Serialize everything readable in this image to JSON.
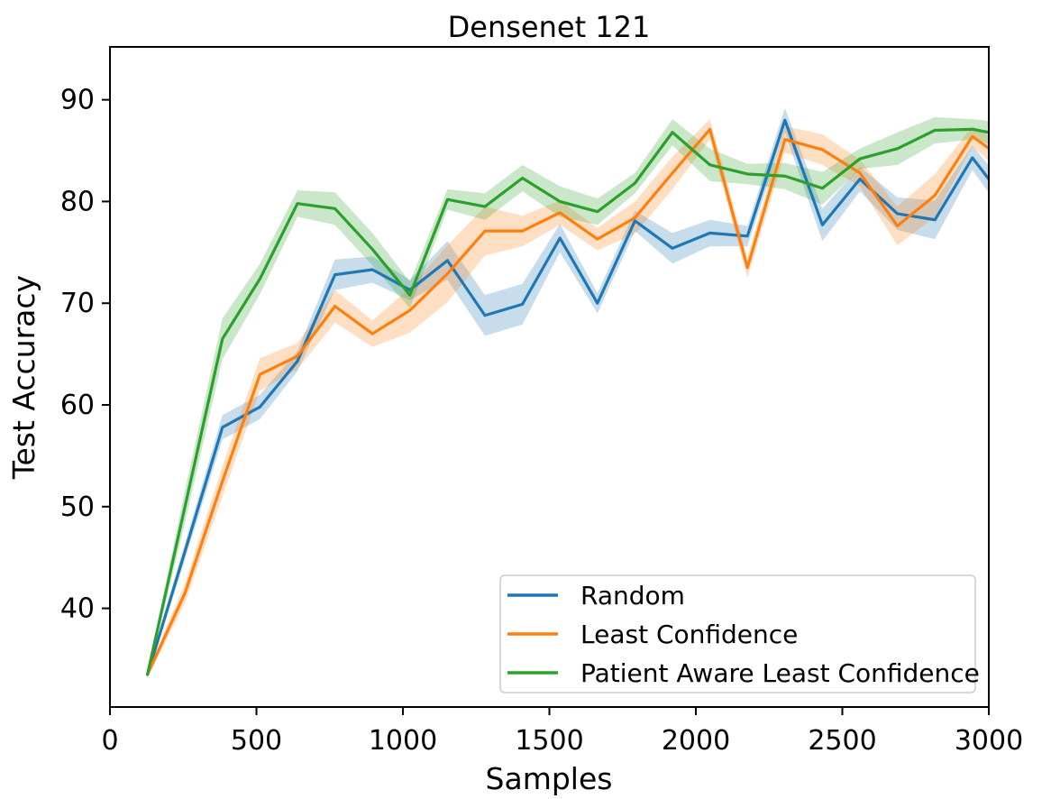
{
  "chart_data": {
    "type": "line",
    "title": "Densenet 121",
    "xlabel": "Samples",
    "ylabel": "Test Accuracy",
    "xlim": [
      0,
      3000
    ],
    "ylim": [
      30.3,
      95.2
    ],
    "x_ticks": [
      0,
      500,
      1000,
      1500,
      2000,
      2500,
      3000
    ],
    "y_ticks": [
      40,
      50,
      60,
      70,
      80,
      90
    ],
    "grid": false,
    "legend_location": "lower right",
    "x": [
      128,
      256,
      384,
      512,
      640,
      768,
      896,
      1024,
      1152,
      1280,
      1408,
      1536,
      1664,
      1792,
      1920,
      2048,
      2176,
      2304,
      2432,
      2560,
      2688,
      2816,
      2944,
      3072
    ],
    "series": [
      {
        "name": "Random",
        "color": "#1f77b4",
        "values": [
          33.5,
          45.6,
          57.8,
          59.8,
          64.3,
          72.8,
          73.3,
          71.3,
          74.2,
          68.8,
          69.9,
          76.4,
          70.0,
          78.1,
          75.4,
          76.9,
          76.6,
          88.0,
          77.7,
          82.2,
          78.8,
          78.2,
          84.3,
          79.5
        ],
        "band": [
          0.3,
          0.8,
          1.2,
          1.2,
          1.0,
          1.5,
          1.3,
          1.0,
          1.9,
          2.0,
          2.0,
          1.4,
          1.0,
          1.0,
          1.5,
          1.3,
          1.0,
          1.2,
          1.6,
          1.2,
          1.6,
          1.9,
          1.2,
          1.5
        ]
      },
      {
        "name": "Least Confidence",
        "color": "#ff7f0e",
        "values": [
          33.5,
          41.5,
          52.5,
          63.0,
          64.8,
          69.7,
          67.0,
          69.3,
          72.9,
          77.1,
          77.1,
          78.9,
          76.3,
          78.4,
          82.8,
          87.1,
          73.5,
          86.1,
          85.1,
          82.8,
          77.6,
          80.6,
          86.4,
          83.7
        ],
        "band": [
          0.3,
          1.0,
          1.5,
          1.6,
          1.3,
          1.6,
          1.3,
          2.2,
          2.8,
          2.4,
          1.5,
          1.2,
          1.1,
          1.6,
          1.6,
          1.0,
          1.0,
          1.3,
          1.5,
          1.3,
          1.9,
          2.1,
          1.0,
          1.5
        ]
      },
      {
        "name": "Patient Aware Least Confidence",
        "color": "#2ca02c",
        "values": [
          33.5,
          50.0,
          66.5,
          72.4,
          79.8,
          79.3,
          75.3,
          70.8,
          80.2,
          79.5,
          82.3,
          80.0,
          79.0,
          81.8,
          86.8,
          83.6,
          82.7,
          82.5,
          81.3,
          84.2,
          85.2,
          87.0,
          87.1,
          86.4
        ],
        "band": [
          0.3,
          1.6,
          2.0,
          1.5,
          1.3,
          1.6,
          1.6,
          1.3,
          1.0,
          1.3,
          1.3,
          1.5,
          1.3,
          1.0,
          1.3,
          1.6,
          1.0,
          1.3,
          1.6,
          1.0,
          1.6,
          1.3,
          1.0,
          1.3
        ]
      }
    ]
  }
}
